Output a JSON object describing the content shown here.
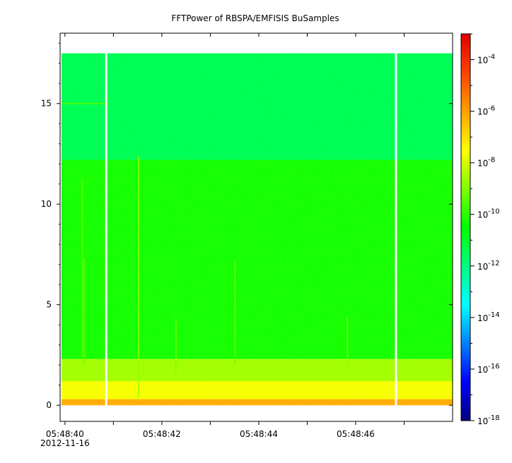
{
  "chart_data": {
    "type": "heatmap",
    "title": "FFTPower of RBSPA/EMFISIS  BuSamples",
    "xlabel": "",
    "ylabel": "",
    "x_range": [
      "05:48:39.9",
      "05:48:48.0"
    ],
    "ylim": [
      -0.8,
      18.5
    ],
    "x_ticks": [
      {
        "label": "05:48:40",
        "sublabel": "2012-11-16",
        "seconds": 40
      },
      {
        "label": "05:48:42",
        "sublabel": "",
        "seconds": 42
      },
      {
        "label": "05:48:44",
        "sublabel": "",
        "seconds": 44
      },
      {
        "label": "05:48:46",
        "sublabel": "",
        "seconds": 46
      }
    ],
    "x_minor_ticks_seconds": [
      41,
      43,
      45,
      47
    ],
    "y_ticks": [
      0,
      5,
      10,
      15
    ],
    "colorbar": {
      "scale": "log",
      "range": [
        1e-18,
        0.001
      ],
      "ticks": [
        {
          "base": "10",
          "exp": "-4",
          "value": 0.0001
        },
        {
          "base": "10",
          "exp": "-6",
          "value": 1e-06
        },
        {
          "base": "10",
          "exp": "-8",
          "value": 1e-08
        },
        {
          "base": "10",
          "exp": "-10",
          "value": 1e-10
        },
        {
          "base": "10",
          "exp": "-12",
          "value": 1e-12
        },
        {
          "base": "10",
          "exp": "-14",
          "value": 1e-14
        },
        {
          "base": "10",
          "exp": "-16",
          "value": 1e-16
        },
        {
          "base": "10",
          "exp": "-18",
          "value": 1e-18
        }
      ],
      "colormap": [
        "#000080",
        "#0000ff",
        "#0080ff",
        "#00ffff",
        "#00ff80",
        "#00ff00",
        "#80ff00",
        "#ffff00",
        "#ffa000",
        "#ff4000",
        "#e00000"
      ]
    },
    "data_gaps_seconds": [
      [
        40.83,
        40.87
      ],
      [
        46.81,
        46.85
      ]
    ],
    "frequency_bands": [
      {
        "y_from": 12.2,
        "y_to": 17.5,
        "log_power": -11.5
      },
      {
        "y_from": 2.3,
        "y_to": 12.2,
        "log_power": -10.3
      },
      {
        "y_from": 1.2,
        "y_to": 2.3,
        "log_power": -8.6
      },
      {
        "y_from": 0.3,
        "y_to": 1.2,
        "log_power": -7.6
      },
      {
        "y_from": 0.0,
        "y_to": 0.3,
        "log_power": -6.2
      }
    ],
    "emissions": [
      {
        "seconds": 41.52,
        "y_from": 0.4,
        "y_to": 12.4,
        "log_power": -8.8
      },
      {
        "seconds": 40.36,
        "y_from": 2.4,
        "y_to": 11.3,
        "log_power": -9.4
      },
      {
        "seconds": 40.4,
        "y_from": 2.0,
        "y_to": 7.3,
        "log_power": -9.3
      },
      {
        "seconds": 43.51,
        "y_from": 2.0,
        "y_to": 7.2,
        "log_power": -9.3
      },
      {
        "seconds": 42.29,
        "y_from": 1.6,
        "y_to": 4.3,
        "log_power": -9.0
      },
      {
        "seconds": 45.83,
        "y_from": 2.0,
        "y_to": 4.4,
        "log_power": -9.0
      },
      {
        "seconds": 40.0,
        "y_from": 14.9,
        "y_to": 15.0,
        "log_power": -9.6
      }
    ]
  }
}
